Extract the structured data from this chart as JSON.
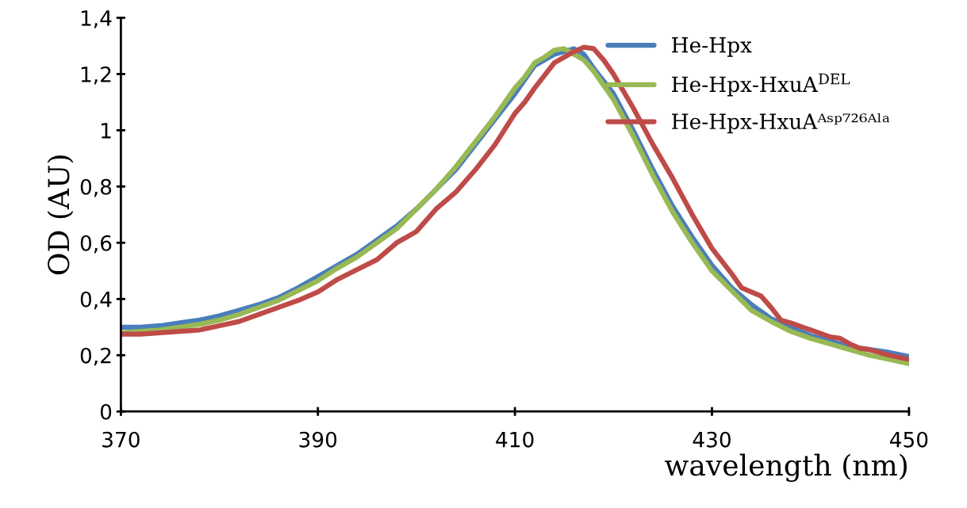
{
  "chart_data": {
    "type": "line",
    "xlabel": "wavelength (nm)",
    "ylabel": "OD (AU)",
    "xlim": [
      370,
      450
    ],
    "xticks": [
      370,
      390,
      410,
      430,
      450
    ],
    "ylim": [
      0,
      1.4
    ],
    "yticks": [
      0,
      {
        "value": 0.2,
        "label": "0,2"
      },
      {
        "value": 0.4,
        "label": "0,4"
      },
      {
        "value": 0.6,
        "label": "0,6"
      },
      {
        "value": 0.8,
        "label": "0,8"
      },
      1,
      {
        "value": 1.2,
        "label": "1,2"
      },
      {
        "value": 1.4,
        "label": "1,4"
      }
    ],
    "grid": false,
    "legend": "top right",
    "marker": "none",
    "line_style": "solid",
    "series": [
      {
        "name": "He-Hpx",
        "color": "#4a7ebb",
        "x": [
          370,
          372,
          374,
          376,
          378,
          380,
          382,
          384,
          386,
          388,
          390,
          392,
          394,
          396,
          398,
          400,
          402,
          404,
          406,
          408,
          410,
          411,
          412,
          414,
          415,
          416,
          417,
          418,
          420,
          422,
          424,
          426,
          428,
          430,
          432,
          434,
          436,
          438,
          440,
          442,
          444,
          446,
          448,
          450
        ],
        "values": [
          0.3,
          0.3,
          0.305,
          0.315,
          0.325,
          0.34,
          0.36,
          0.38,
          0.405,
          0.44,
          0.48,
          0.52,
          0.56,
          0.61,
          0.66,
          0.72,
          0.79,
          0.86,
          0.95,
          1.04,
          1.13,
          1.18,
          1.23,
          1.27,
          1.28,
          1.29,
          1.27,
          1.22,
          1.13,
          1.0,
          0.86,
          0.73,
          0.62,
          0.52,
          0.44,
          0.38,
          0.33,
          0.3,
          0.27,
          0.25,
          0.23,
          0.22,
          0.21,
          0.195
        ]
      },
      {
        "name": "He-Hpx-HxuA$^{DEL}$",
        "color": "#98b954",
        "x": [
          370,
          372,
          374,
          376,
          378,
          380,
          382,
          384,
          386,
          388,
          390,
          392,
          394,
          396,
          398,
          400,
          402,
          404,
          406,
          408,
          410,
          411,
          412,
          413,
          414,
          415,
          416,
          417,
          418,
          420,
          422,
          424,
          426,
          428,
          430,
          432,
          434,
          436,
          438,
          440,
          442,
          444,
          446,
          448,
          450
        ],
        "values": [
          0.28,
          0.285,
          0.29,
          0.3,
          0.31,
          0.325,
          0.345,
          0.37,
          0.395,
          0.43,
          0.465,
          0.51,
          0.55,
          0.6,
          0.65,
          0.72,
          0.79,
          0.87,
          0.96,
          1.05,
          1.15,
          1.19,
          1.24,
          1.26,
          1.285,
          1.29,
          1.27,
          1.25,
          1.21,
          1.11,
          0.98,
          0.84,
          0.71,
          0.6,
          0.5,
          0.43,
          0.36,
          0.32,
          0.285,
          0.26,
          0.24,
          0.22,
          0.2,
          0.185,
          0.17
        ]
      },
      {
        "name": "He-Hpx-HxuAᴬˢᵖ⁷²⁶ᴬˡᵃ",
        "color": "#be4b48",
        "x": [
          370,
          372,
          374,
          376,
          378,
          380,
          382,
          384,
          386,
          388,
          390,
          392,
          394,
          396,
          398,
          400,
          402,
          404,
          406,
          408,
          410,
          411,
          412,
          414,
          416,
          417,
          418,
          419,
          420,
          422,
          424,
          426,
          428,
          430,
          432,
          433,
          435,
          436,
          437,
          438,
          440,
          442,
          443,
          444,
          445,
          446,
          448,
          450
        ],
        "values": [
          0.275,
          0.275,
          0.28,
          0.285,
          0.29,
          0.305,
          0.32,
          0.345,
          0.37,
          0.395,
          0.425,
          0.47,
          0.505,
          0.54,
          0.6,
          0.64,
          0.72,
          0.78,
          0.86,
          0.95,
          1.06,
          1.1,
          1.15,
          1.24,
          1.28,
          1.295,
          1.29,
          1.25,
          1.2,
          1.08,
          0.95,
          0.83,
          0.7,
          0.58,
          0.49,
          0.44,
          0.41,
          0.37,
          0.325,
          0.315,
          0.29,
          0.265,
          0.26,
          0.24,
          0.225,
          0.22,
          0.2,
          0.185
        ]
      }
    ]
  }
}
